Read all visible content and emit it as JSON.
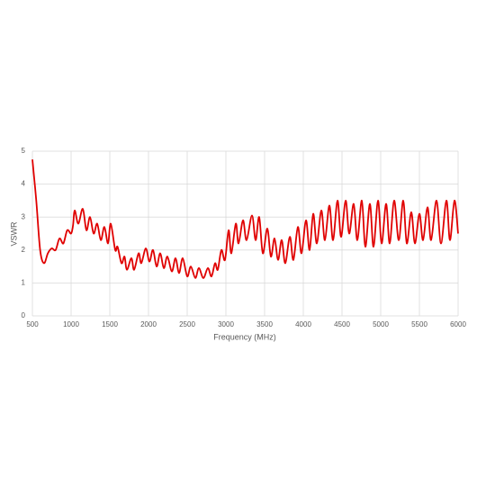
{
  "chart_data": {
    "type": "line",
    "x_label": "Frequency (MHz)",
    "y_label": "VSWR",
    "x": [
      500,
      550,
      600,
      650,
      700,
      750,
      800,
      850,
      900,
      950,
      1000,
      1025,
      1047,
      1093,
      1151,
      1198,
      1244,
      1291,
      1337,
      1384,
      1430,
      1477,
      1512,
      1570,
      1600,
      1651,
      1690,
      1721,
      1779,
      1814,
      1872,
      1907,
      1965,
      2012,
      2058,
      2105,
      2151,
      2198,
      2244,
      2302,
      2349,
      2395,
      2442,
      2500,
      2547,
      2605,
      2651,
      2709,
      2767,
      2814,
      2860,
      2895,
      2942,
      2988,
      3035,
      3070,
      3128,
      3163,
      3221,
      3267,
      3337,
      3384,
      3430,
      3477,
      3535,
      3581,
      3628,
      3674,
      3721,
      3767,
      3826,
      3872,
      3930,
      3977,
      4035,
      4081,
      4128,
      4174,
      4233,
      4279,
      4337,
      4384,
      4442,
      4488,
      4547,
      4593,
      4651,
      4698,
      4756,
      4802,
      4860,
      4907,
      4965,
      5012,
      5070,
      5116,
      5174,
      5233,
      5291,
      5337,
      5395,
      5442,
      5500,
      5547,
      5605,
      5651,
      5721,
      5779,
      5849,
      5895,
      5953,
      6000
    ],
    "series": [
      {
        "name": "VSWR",
        "color": "#e00000",
        "values": [
          4.75,
          3.5,
          2.0,
          1.6,
          1.9,
          2.05,
          2.0,
          2.35,
          2.2,
          2.6,
          2.5,
          2.75,
          3.2,
          2.8,
          3.25,
          2.6,
          3.0,
          2.5,
          2.8,
          2.3,
          2.7,
          2.2,
          2.8,
          2.0,
          2.1,
          1.6,
          1.8,
          1.4,
          1.75,
          1.4,
          1.9,
          1.6,
          2.05,
          1.65,
          2.0,
          1.5,
          1.9,
          1.45,
          1.8,
          1.35,
          1.75,
          1.3,
          1.75,
          1.2,
          1.5,
          1.15,
          1.45,
          1.15,
          1.45,
          1.2,
          1.6,
          1.4,
          2.0,
          1.7,
          2.6,
          1.9,
          2.8,
          2.2,
          2.9,
          2.3,
          3.05,
          2.3,
          3.0,
          1.9,
          2.65,
          1.8,
          2.35,
          1.7,
          2.3,
          1.6,
          2.4,
          1.7,
          2.7,
          1.9,
          2.9,
          2.0,
          3.1,
          2.2,
          3.2,
          2.3,
          3.35,
          2.3,
          3.5,
          2.4,
          3.5,
          2.5,
          3.4,
          2.3,
          3.5,
          2.1,
          3.4,
          2.1,
          3.5,
          2.2,
          3.4,
          2.2,
          3.5,
          2.3,
          3.5,
          2.2,
          3.15,
          2.2,
          3.1,
          2.3,
          3.3,
          2.3,
          3.5,
          2.2,
          3.5,
          2.3,
          3.5,
          2.5
        ]
      }
    ],
    "xlim": [
      500,
      6000
    ],
    "xticks": [
      500,
      1000,
      1500,
      2000,
      2500,
      3000,
      3500,
      4000,
      4500,
      5000,
      5500,
      6000
    ],
    "ylim": [
      0,
      5
    ],
    "yticks": [
      0,
      1,
      2,
      3,
      4,
      5
    ],
    "grid": true
  }
}
